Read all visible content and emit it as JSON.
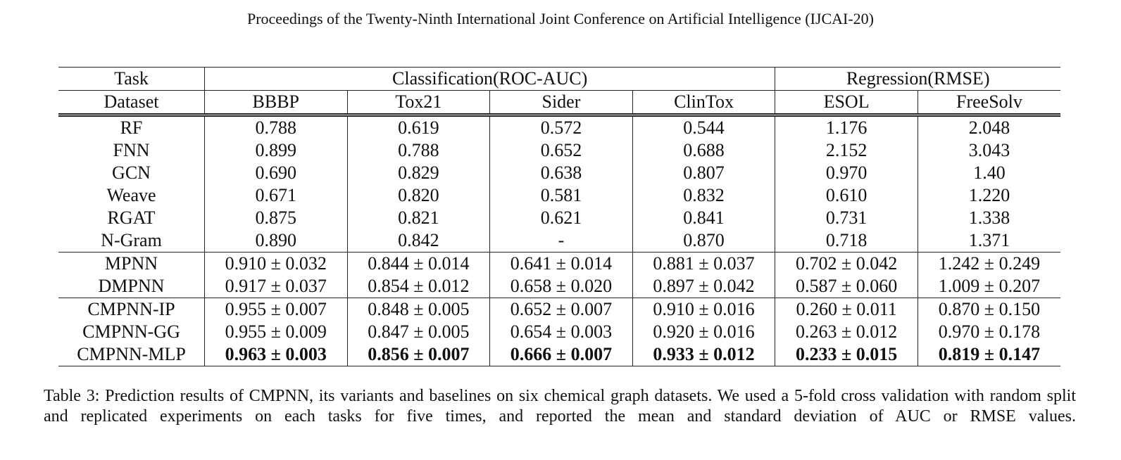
{
  "header": {
    "title": "Proceedings of the Twenty-Ninth International Joint Conference on Artificial Intelligence (IJCAI-20)"
  },
  "table": {
    "task_label": "Task",
    "dataset_label": "Dataset",
    "groups": [
      {
        "label": "Classification(ROC-AUC)",
        "datasets": [
          "BBBP",
          "Tox21",
          "Sider",
          "ClinTox"
        ]
      },
      {
        "label": "Regression(RMSE)",
        "datasets": [
          "ESOL",
          "FreeSolv"
        ]
      }
    ],
    "row_groups": [
      [
        [
          "RF",
          "0.788",
          "0.619",
          "0.572",
          "0.544",
          "1.176",
          "2.048"
        ],
        [
          "FNN",
          "0.899",
          "0.788",
          "0.652",
          "0.688",
          "2.152",
          "3.043"
        ],
        [
          "GCN",
          "0.690",
          "0.829",
          "0.638",
          "0.807",
          "0.970",
          "1.40"
        ],
        [
          "Weave",
          "0.671",
          "0.820",
          "0.581",
          "0.832",
          "0.610",
          "1.220"
        ],
        [
          "RGAT",
          "0.875",
          "0.821",
          "0.621",
          "0.841",
          "0.731",
          "1.338"
        ],
        [
          "N-Gram",
          "0.890",
          "0.842",
          "-",
          "0.870",
          "0.718",
          "1.371"
        ]
      ],
      [
        [
          "MPNN",
          "0.910 ± 0.032",
          "0.844 ± 0.014",
          "0.641 ± 0.014",
          "0.881 ± 0.037",
          "0.702 ± 0.042",
          "1.242 ± 0.249"
        ],
        [
          "DMPNN",
          "0.917 ± 0.037",
          "0.854 ± 0.012",
          "0.658 ± 0.020",
          "0.897 ± 0.042",
          "0.587 ± 0.060",
          "1.009 ± 0.207"
        ]
      ],
      [
        [
          "CMPNN-IP",
          "0.955 ± 0.007",
          "0.848 ± 0.005",
          "0.652 ± 0.007",
          "0.910 ± 0.016",
          "0.260 ± 0.011",
          "0.870 ± 0.150"
        ],
        [
          "CMPNN-GG",
          "0.955 ± 0.009",
          "0.847 ± 0.005",
          "0.654 ± 0.003",
          "0.920 ± 0.016",
          "0.263 ± 0.012",
          "0.970 ± 0.178"
        ],
        [
          "CMPNN-MLP",
          "0.963 ± 0.003",
          "0.856 ± 0.007",
          "0.666 ± 0.007",
          "0.933 ± 0.012",
          "0.233 ± 0.015",
          "0.819 ± 0.147"
        ]
      ]
    ]
  },
  "caption": "Table 3: Prediction results of CMPNN, its variants and baselines on six chemical graph datasets. We used a 5-fold cross validation with random split and replicated experiments on each tasks for five times, and reported the mean and standard deviation of AUC or RMSE values."
}
